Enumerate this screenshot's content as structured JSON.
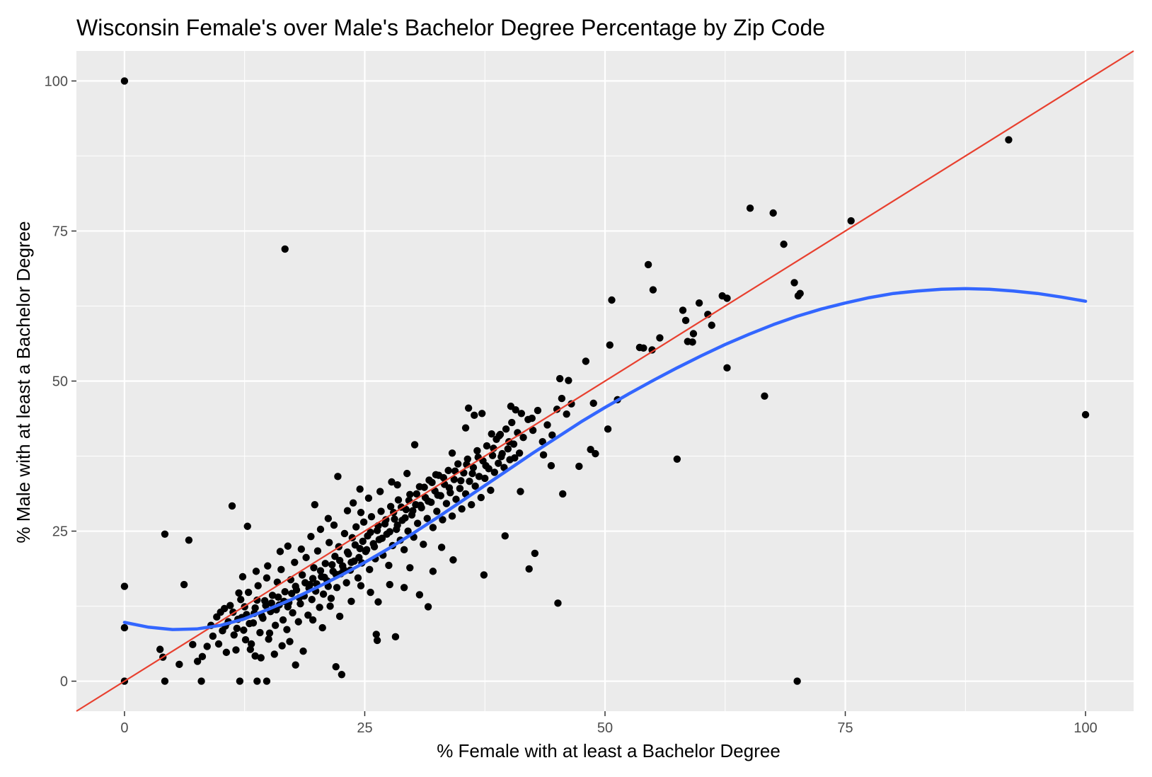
{
  "chart_data": {
    "type": "scatter",
    "title": "Wisconsin Female's over Male's Bachelor Degree Percentage by Zip Code",
    "xlabel": "% Female with at least a Bachelor Degree",
    "ylabel": "% Male with at least a Bachelor Degree",
    "xlim": [
      -5,
      105
    ],
    "ylim": [
      -5,
      105
    ],
    "xticks": [
      0,
      25,
      50,
      75,
      100
    ],
    "yticks": [
      0,
      25,
      50,
      75,
      100
    ],
    "grid": true,
    "colors": {
      "panel": "#ebebeb",
      "grid": "#ffffff",
      "points": "#000000",
      "identity_line": "#e8402f",
      "smooth_line": "#3366ff"
    },
    "identity_line": {
      "x": [
        -5,
        105
      ],
      "y": [
        -5,
        105
      ]
    },
    "smooth": {
      "x": [
        0,
        2.5,
        5,
        7.5,
        10,
        12.5,
        15,
        17.5,
        20,
        22.5,
        25,
        27.5,
        30,
        32.5,
        35,
        37.5,
        40,
        42.5,
        45,
        47.5,
        50,
        52.5,
        55,
        57.5,
        60,
        62.5,
        65,
        67.5,
        70,
        72.5,
        75,
        77.5,
        80,
        82.5,
        85,
        87.5,
        90,
        92.5,
        95,
        97.5,
        100
      ],
      "y": [
        9.8,
        9.0,
        8.6,
        8.7,
        9.3,
        10.4,
        12.0,
        13.7,
        15.6,
        17.6,
        19.8,
        22.1,
        24.6,
        27.2,
        29.9,
        32.6,
        35.3,
        38.0,
        40.6,
        43.2,
        45.6,
        47.9,
        50.1,
        52.2,
        54.2,
        56.1,
        57.8,
        59.4,
        60.8,
        62.0,
        63.0,
        63.9,
        64.6,
        65.0,
        65.3,
        65.4,
        65.3,
        65.0,
        64.6,
        64.0,
        63.3
      ]
    },
    "points": [
      [
        0,
        100
      ],
      [
        16.7,
        72
      ],
      [
        0,
        15.8
      ],
      [
        0,
        8.9
      ],
      [
        0,
        0
      ],
      [
        4.2,
        24.5
      ],
      [
        6.7,
        23.5
      ],
      [
        6.2,
        16.1
      ],
      [
        3.7,
        5.3
      ],
      [
        4.0,
        4.0
      ],
      [
        4.2,
        0
      ],
      [
        5.7,
        2.8
      ],
      [
        8,
        0
      ],
      [
        12,
        0
      ],
      [
        13.8,
        0
      ],
      [
        14.8,
        0
      ],
      [
        11.2,
        29.2
      ],
      [
        12.8,
        25.8
      ],
      [
        22.2,
        34.1
      ],
      [
        24.5,
        32.0
      ],
      [
        19.8,
        29.4
      ],
      [
        22.0,
        2.4
      ],
      [
        22.6,
        1.1
      ],
      [
        26.2,
        7.8
      ],
      [
        26.3,
        6.8
      ],
      [
        28.2,
        7.4
      ],
      [
        30.7,
        14.4
      ],
      [
        31.6,
        12.4
      ],
      [
        10.0,
        11.5
      ],
      [
        10.5,
        9.2
      ],
      [
        11.0,
        12.6
      ],
      [
        11.4,
        7.7
      ],
      [
        11.8,
        10.3
      ],
      [
        12.1,
        13.6
      ],
      [
        12.4,
        8.5
      ],
      [
        12.7,
        11.1
      ],
      [
        12.9,
        14.8
      ],
      [
        13.2,
        6.2
      ],
      [
        13.4,
        9.7
      ],
      [
        13.6,
        12.2
      ],
      [
        13.9,
        15.9
      ],
      [
        14.1,
        8.1
      ],
      [
        14.3,
        10.9
      ],
      [
        14.6,
        13.4
      ],
      [
        14.8,
        17.2
      ],
      [
        15.0,
        7.0
      ],
      [
        15.2,
        11.6
      ],
      [
        15.4,
        14.3
      ],
      [
        15.7,
        9.3
      ],
      [
        15.9,
        16.5
      ],
      [
        16.1,
        12.7
      ],
      [
        16.3,
        18.6
      ],
      [
        16.5,
        10.2
      ],
      [
        16.7,
        14.9
      ],
      [
        16.9,
        8.6
      ],
      [
        17.1,
        13.1
      ],
      [
        17.3,
        16.9
      ],
      [
        17.5,
        11.4
      ],
      [
        17.7,
        19.8
      ],
      [
        17.9,
        15.2
      ],
      [
        18.1,
        9.9
      ],
      [
        18.3,
        12.9
      ],
      [
        18.5,
        17.7
      ],
      [
        18.7,
        14.2
      ],
      [
        18.9,
        20.6
      ],
      [
        19.1,
        11.0
      ],
      [
        19.3,
        16.1
      ],
      [
        19.5,
        13.6
      ],
      [
        19.7,
        18.9
      ],
      [
        19.9,
        15.0
      ],
      [
        20.1,
        21.7
      ],
      [
        20.3,
        12.3
      ],
      [
        20.5,
        17.4
      ],
      [
        20.7,
        14.5
      ],
      [
        20.9,
        19.6
      ],
      [
        21.1,
        16.7
      ],
      [
        21.3,
        23.1
      ],
      [
        21.5,
        13.8
      ],
      [
        21.7,
        18.3
      ],
      [
        21.9,
        20.8
      ],
      [
        22.1,
        15.6
      ],
      [
        22.3,
        22.4
      ],
      [
        22.5,
        17.9
      ],
      [
        22.7,
        19.2
      ],
      [
        22.9,
        24.6
      ],
      [
        23.1,
        16.4
      ],
      [
        23.3,
        21.2
      ],
      [
        23.5,
        18.5
      ],
      [
        23.7,
        23.9
      ],
      [
        23.9,
        20.0
      ],
      [
        24.1,
        25.7
      ],
      [
        24.3,
        17.2
      ],
      [
        24.5,
        22.1
      ],
      [
        24.7,
        19.7
      ],
      [
        24.9,
        26.5
      ],
      [
        25.1,
        21.6
      ],
      [
        25.3,
        24.2
      ],
      [
        25.5,
        18.6
      ],
      [
        25.7,
        27.4
      ],
      [
        25.9,
        22.9
      ],
      [
        26.1,
        20.4
      ],
      [
        26.3,
        25.1
      ],
      [
        26.5,
        23.6
      ],
      [
        26.7,
        28.3
      ],
      [
        26.9,
        21.0
      ],
      [
        27.1,
        26.2
      ],
      [
        27.3,
        24.5
      ],
      [
        27.5,
        19.3
      ],
      [
        27.7,
        29.1
      ],
      [
        27.9,
        22.6
      ],
      [
        28.1,
        27.0
      ],
      [
        28.3,
        25.3
      ],
      [
        28.5,
        30.2
      ],
      [
        28.7,
        23.5
      ],
      [
        28.9,
        26.8
      ],
      [
        29.1,
        21.9
      ],
      [
        29.3,
        28.6
      ],
      [
        29.5,
        25.0
      ],
      [
        29.7,
        31.1
      ],
      [
        29.9,
        27.7
      ],
      [
        30.1,
        24.0
      ],
      [
        30.3,
        29.4
      ],
      [
        30.5,
        26.3
      ],
      [
        30.7,
        32.4
      ],
      [
        30.9,
        28.9
      ],
      [
        31.1,
        22.8
      ],
      [
        31.3,
        30.6
      ],
      [
        31.5,
        27.1
      ],
      [
        31.7,
        33.5
      ],
      [
        31.9,
        29.8
      ],
      [
        32.1,
        25.6
      ],
      [
        32.3,
        31.7
      ],
      [
        32.5,
        28.3
      ],
      [
        32.7,
        34.3
      ],
      [
        32.9,
        30.9
      ],
      [
        33.1,
        26.9
      ],
      [
        33.3,
        32.8
      ],
      [
        33.5,
        29.6
      ],
      [
        33.7,
        35.1
      ],
      [
        33.9,
        31.4
      ],
      [
        34.1,
        27.5
      ],
      [
        34.3,
        33.6
      ],
      [
        34.5,
        30.3
      ],
      [
        34.7,
        36.2
      ],
      [
        34.9,
        32.1
      ],
      [
        35.1,
        28.7
      ],
      [
        35.3,
        34.7
      ],
      [
        35.5,
        31.2
      ],
      [
        35.7,
        37.0
      ],
      [
        35.9,
        33.3
      ],
      [
        36.1,
        29.4
      ],
      [
        36.3,
        35.6
      ],
      [
        36.5,
        32.5
      ],
      [
        36.7,
        38.4
      ],
      [
        36.9,
        34.1
      ],
      [
        37.1,
        30.6
      ],
      [
        37.3,
        36.7
      ],
      [
        37.5,
        33.8
      ],
      [
        37.7,
        39.2
      ],
      [
        37.9,
        35.4
      ],
      [
        38.1,
        31.8
      ],
      [
        38.3,
        37.6
      ],
      [
        38.5,
        34.8
      ],
      [
        38.7,
        40.3
      ],
      [
        38.9,
        36.3
      ],
      [
        39.1,
        41.1
      ],
      [
        39.3,
        37.9
      ],
      [
        39.5,
        35.6
      ],
      [
        39.7,
        42.0
      ],
      [
        39.9,
        38.7
      ],
      [
        40.1,
        36.9
      ],
      [
        40.3,
        43.1
      ],
      [
        40.5,
        39.5
      ],
      [
        40.7,
        45.2
      ],
      [
        40.9,
        41.4
      ],
      [
        41.1,
        38.0
      ],
      [
        41.3,
        44.6
      ],
      [
        41.5,
        40.6
      ],
      [
        42.0,
        43.6
      ],
      [
        42.5,
        41.8
      ],
      [
        43.0,
        45.1
      ],
      [
        43.5,
        39.9
      ],
      [
        44.0,
        42.7
      ],
      [
        44.5,
        41.0
      ],
      [
        45.0,
        45.3
      ],
      [
        45.5,
        47.1
      ],
      [
        46.0,
        44.5
      ],
      [
        46.5,
        46.2
      ],
      [
        45.3,
        50.4
      ],
      [
        46.2,
        50.1
      ],
      [
        48.0,
        53.3
      ],
      [
        48.8,
        46.3
      ],
      [
        48.5,
        38.6
      ],
      [
        49.0,
        37.9
      ],
      [
        47.3,
        35.8
      ],
      [
        45.6,
        31.2
      ],
      [
        44.4,
        35.9
      ],
      [
        43.6,
        37.7
      ],
      [
        42.7,
        21.3
      ],
      [
        42.1,
        18.7
      ],
      [
        45.1,
        13.0
      ],
      [
        39.6,
        24.2
      ],
      [
        37.4,
        17.7
      ],
      [
        34.2,
        20.2
      ],
      [
        33.0,
        22.3
      ],
      [
        32.1,
        18.3
      ],
      [
        29.7,
        18.9
      ],
      [
        29.1,
        15.6
      ],
      [
        27.6,
        16.1
      ],
      [
        26.4,
        13.2
      ],
      [
        25.6,
        14.8
      ],
      [
        24.6,
        15.9
      ],
      [
        23.6,
        13.3
      ],
      [
        22.4,
        10.8
      ],
      [
        21.4,
        12.5
      ],
      [
        20.6,
        8.9
      ],
      [
        19.6,
        10.2
      ],
      [
        18.6,
        5.0
      ],
      [
        17.8,
        2.7
      ],
      [
        17.2,
        6.6
      ],
      [
        16.4,
        5.9
      ],
      [
        15.6,
        4.5
      ],
      [
        15.1,
        8.0
      ],
      [
        14.2,
        3.9
      ],
      [
        13.6,
        4.2
      ],
      [
        13.1,
        5.3
      ],
      [
        12.6,
        6.9
      ],
      [
        11.6,
        5.2
      ],
      [
        10.6,
        4.8
      ],
      [
        9.8,
        6.2
      ],
      [
        9.2,
        7.5
      ],
      [
        8.6,
        5.8
      ],
      [
        8.1,
        4.1
      ],
      [
        7.6,
        3.3
      ],
      [
        7.1,
        6.1
      ],
      [
        10.4,
        12.1
      ],
      [
        11.9,
        14.7
      ],
      [
        12.3,
        17.4
      ],
      [
        13.7,
        18.3
      ],
      [
        14.9,
        19.2
      ],
      [
        16.2,
        21.6
      ],
      [
        17.0,
        22.5
      ],
      [
        18.4,
        22.0
      ],
      [
        19.4,
        24.1
      ],
      [
        20.4,
        25.3
      ],
      [
        21.2,
        27.1
      ],
      [
        21.8,
        26.0
      ],
      [
        23.2,
        28.4
      ],
      [
        23.8,
        29.7
      ],
      [
        24.6,
        28.1
      ],
      [
        25.4,
        30.5
      ],
      [
        26.6,
        31.6
      ],
      [
        27.8,
        33.2
      ],
      [
        28.4,
        32.7
      ],
      [
        29.4,
        34.6
      ],
      [
        30.2,
        39.4
      ],
      [
        32.4,
        34.4
      ],
      [
        34.1,
        38.0
      ],
      [
        35.5,
        42.2
      ],
      [
        35.8,
        45.5
      ],
      [
        36.4,
        44.3
      ],
      [
        37.2,
        44.6
      ],
      [
        38.2,
        41.2
      ],
      [
        39.0,
        40.9
      ],
      [
        40.6,
        37.2
      ],
      [
        41.2,
        31.6
      ],
      [
        40.2,
        45.8
      ],
      [
        42.4,
        43.8
      ],
      [
        50.3,
        42.0
      ],
      [
        51.3,
        46.9
      ],
      [
        50.5,
        56.0
      ],
      [
        50.7,
        63.5
      ],
      [
        53.6,
        55.6
      ],
      [
        54.0,
        55.5
      ],
      [
        54.5,
        69.4
      ],
      [
        54.9,
        55.2
      ],
      [
        55.0,
        65.2
      ],
      [
        55.7,
        57.2
      ],
      [
        57.5,
        37.0
      ],
      [
        58.1,
        61.8
      ],
      [
        58.4,
        60.1
      ],
      [
        58.6,
        56.6
      ],
      [
        59.1,
        56.5
      ],
      [
        59.2,
        57.9
      ],
      [
        59.8,
        63.0
      ],
      [
        60.7,
        61.1
      ],
      [
        61.1,
        59.3
      ],
      [
        62.2,
        64.2
      ],
      [
        62.7,
        63.8
      ],
      [
        62.7,
        52.2
      ],
      [
        65.1,
        78.8
      ],
      [
        66.6,
        47.5
      ],
      [
        67.5,
        78.0
      ],
      [
        68.6,
        72.8
      ],
      [
        69.7,
        66.4
      ],
      [
        70.1,
        64.2
      ],
      [
        70.3,
        64.6
      ],
      [
        70.0,
        0
      ],
      [
        75.6,
        76.7
      ],
      [
        92.0,
        90.2
      ],
      [
        100,
        44.4
      ],
      [
        9.0,
        9.3
      ],
      [
        9.6,
        10.7
      ],
      [
        10.2,
        8.4
      ],
      [
        10.8,
        9.9
      ],
      [
        11.3,
        11.5
      ],
      [
        11.7,
        8.8
      ],
      [
        12.2,
        10.6
      ],
      [
        12.5,
        12.4
      ],
      [
        13.0,
        9.6
      ],
      [
        13.5,
        11.3
      ],
      [
        13.8,
        13.5
      ],
      [
        14.4,
        10.5
      ],
      [
        14.7,
        12.6
      ],
      [
        15.3,
        13.0
      ],
      [
        15.8,
        11.9
      ],
      [
        16.0,
        14.0
      ],
      [
        16.6,
        13.3
      ],
      [
        17.0,
        12.4
      ],
      [
        17.4,
        14.6
      ],
      [
        17.8,
        15.8
      ],
      [
        18.2,
        13.9
      ],
      [
        18.8,
        16.4
      ],
      [
        19.2,
        15.5
      ],
      [
        19.6,
        17.1
      ],
      [
        20.0,
        16.2
      ],
      [
        20.4,
        18.4
      ],
      [
        20.8,
        17.3
      ],
      [
        21.2,
        15.8
      ],
      [
        21.6,
        19.4
      ],
      [
        22.0,
        17.8
      ],
      [
        22.4,
        20.1
      ],
      [
        22.8,
        18.6
      ],
      [
        23.2,
        21.5
      ],
      [
        23.6,
        19.8
      ],
      [
        24.0,
        22.7
      ],
      [
        24.4,
        20.6
      ],
      [
        24.8,
        23.3
      ],
      [
        25.2,
        21.9
      ],
      [
        25.6,
        24.8
      ],
      [
        26.0,
        22.4
      ],
      [
        26.4,
        25.9
      ],
      [
        26.8,
        23.8
      ],
      [
        27.2,
        26.9
      ],
      [
        27.6,
        24.9
      ],
      [
        28.0,
        28.1
      ],
      [
        28.4,
        26.0
      ],
      [
        28.8,
        29.0
      ],
      [
        29.2,
        27.2
      ],
      [
        29.6,
        30.1
      ],
      [
        30.0,
        28.4
      ],
      [
        30.4,
        31.2
      ],
      [
        30.8,
        29.3
      ],
      [
        31.2,
        32.3
      ],
      [
        31.6,
        30.0
      ],
      [
        32.0,
        33.1
      ],
      [
        32.6,
        31.0
      ],
      [
        33.2,
        33.9
      ],
      [
        33.8,
        32.2
      ],
      [
        34.4,
        35.0
      ],
      [
        35.0,
        33.4
      ],
      [
        35.6,
        36.1
      ],
      [
        36.2,
        34.6
      ],
      [
        36.8,
        37.3
      ],
      [
        37.6,
        35.9
      ],
      [
        38.4,
        38.8
      ],
      [
        39.2,
        37.4
      ],
      [
        40.0,
        39.9
      ]
    ]
  }
}
